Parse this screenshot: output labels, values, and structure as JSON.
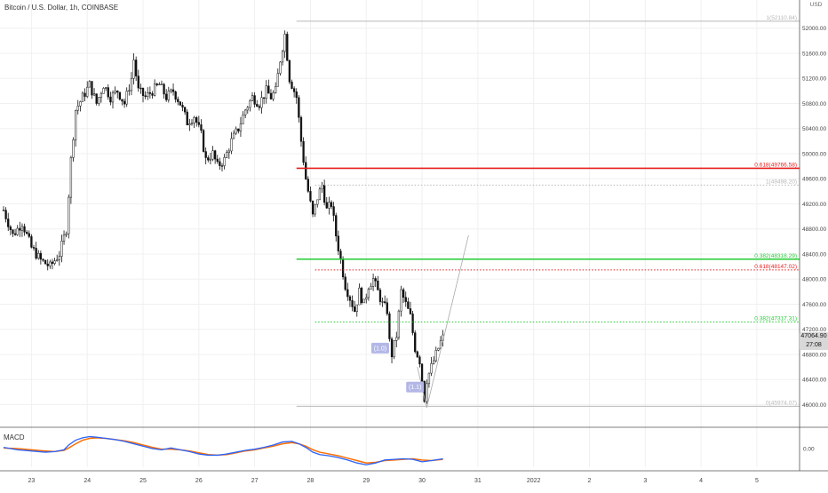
{
  "chart_title": "Bitcoin / U.S. Dollar, 1h, COINBASE",
  "currency": "USD",
  "macd_label": "MACD",
  "current_price": "47064.90",
  "countdown": "27:08",
  "colors": {
    "candle": "#111111",
    "fib_red": "#e61e1e",
    "fib_green": "#22cc33",
    "gray_level": "#b8b8b8",
    "macd_line": "#2962ff",
    "signal_line": "#ff6d00",
    "grid": "#f0f0f0",
    "axis_text": "#444444",
    "wave_label_bg": "#b3b7e6"
  },
  "chart_data": {
    "type": "candlestick",
    "title": "Bitcoin / U.S. Dollar, 1h, COINBASE",
    "y_axis": {
      "ticks": [
        "52400.00",
        "52000.00",
        "51600.00",
        "51200.00",
        "50800.00",
        "50400.00",
        "50000.00",
        "49600.00",
        "49200.00",
        "48800.00",
        "48400.00",
        "48000.00",
        "47600.00",
        "47200.00",
        "46800.00",
        "46400.00",
        "46000.00"
      ],
      "ylim": [
        45900,
        52500
      ]
    },
    "x_axis": {
      "ticks": [
        {
          "label": "23",
          "hour": 12
        },
        {
          "label": "24",
          "hour": 36
        },
        {
          "label": "25",
          "hour": 60
        },
        {
          "label": "26",
          "hour": 84
        },
        {
          "label": "27",
          "hour": 108
        },
        {
          "label": "28",
          "hour": 132
        },
        {
          "label": "29",
          "hour": 156
        },
        {
          "label": "30",
          "hour": 180
        },
        {
          "label": "31",
          "hour": 204
        },
        {
          "label": "2022",
          "hour": 228
        },
        {
          "label": "2",
          "hour": 252
        },
        {
          "label": "3",
          "hour": 276
        },
        {
          "label": "4",
          "hour": 300
        },
        {
          "label": "5",
          "hour": 324
        }
      ]
    },
    "price_path": [
      [
        0,
        49100
      ],
      [
        4,
        48700
      ],
      [
        8,
        48900
      ],
      [
        12,
        48500
      ],
      [
        16,
        48300
      ],
      [
        20,
        48200
      ],
      [
        24,
        48400
      ],
      [
        27,
        48800
      ],
      [
        29,
        49900
      ],
      [
        31,
        50700
      ],
      [
        34,
        50900
      ],
      [
        37,
        51100
      ],
      [
        40,
        50800
      ],
      [
        43,
        51100
      ],
      [
        46,
        50900
      ],
      [
        49,
        51000
      ],
      [
        52,
        50800
      ],
      [
        55,
        51200
      ],
      [
        56,
        51500
      ],
      [
        58,
        51000
      ],
      [
        61,
        50900
      ],
      [
        64,
        51000
      ],
      [
        67,
        51100
      ],
      [
        70,
        50900
      ],
      [
        73,
        51000
      ],
      [
        76,
        50800
      ],
      [
        79,
        50500
      ],
      [
        82,
        50600
      ],
      [
        85,
        50300
      ],
      [
        87,
        49900
      ],
      [
        90,
        50000
      ],
      [
        92,
        49800
      ],
      [
        95,
        49900
      ],
      [
        98,
        50200
      ],
      [
        101,
        50400
      ],
      [
        104,
        50700
      ],
      [
        107,
        50900
      ],
      [
        110,
        50800
      ],
      [
        113,
        51000
      ],
      [
        115,
        50900
      ],
      [
        117,
        51000
      ],
      [
        119,
        51500
      ],
      [
        121,
        51900
      ],
      [
        123,
        51200
      ],
      [
        126,
        50900
      ],
      [
        128,
        50200
      ],
      [
        130,
        49600
      ],
      [
        131,
        49400
      ],
      [
        133,
        49000
      ],
      [
        135,
        49300
      ],
      [
        137,
        49500
      ],
      [
        139,
        49100
      ],
      [
        141,
        49200
      ],
      [
        143,
        48700
      ],
      [
        145,
        48300
      ],
      [
        147,
        47900
      ],
      [
        149,
        47700
      ],
      [
        151,
        47500
      ],
      [
        153,
        47800
      ],
      [
        155,
        47600
      ],
      [
        157,
        47900
      ],
      [
        159,
        48000
      ],
      [
        161,
        47800
      ],
      [
        163,
        47600
      ],
      [
        165,
        47500
      ],
      [
        166,
        47000
      ],
      [
        167,
        46800
      ],
      [
        169,
        47100
      ],
      [
        171,
        47800
      ],
      [
        173,
        47600
      ],
      [
        175,
        47400
      ],
      [
        177,
        46900
      ],
      [
        179,
        46700
      ],
      [
        180,
        46400
      ],
      [
        181,
        46100
      ],
      [
        182,
        46400
      ],
      [
        184,
        46600
      ],
      [
        186,
        46800
      ],
      [
        188,
        47000
      ],
      [
        189,
        47065
      ]
    ],
    "ohlc_summary": {
      "open": 49100,
      "close": 47065,
      "high": 52110.84,
      "low": 45974.07
    },
    "fibonacci_levels": [
      {
        "label": "1(52110.84)",
        "price": 52110.84,
        "color": "gray",
        "style": "solid",
        "start_hour": 126
      },
      {
        "label": "0.618(49766.58)",
        "price": 49766.58,
        "color": "red",
        "style": "solid",
        "start_hour": 126
      },
      {
        "label": "1(49498.20)",
        "price": 49498.2,
        "color": "gray",
        "style": "dotted",
        "start_hour": 134
      },
      {
        "label": "0.382(48318.29)",
        "price": 48318.29,
        "color": "green",
        "style": "solid",
        "start_hour": 126
      },
      {
        "label": "0.618(48147.02)",
        "price": 48147.02,
        "color": "red",
        "style": "dotted",
        "start_hour": 134
      },
      {
        "label": "0.382(47317.31)",
        "price": 47317.31,
        "color": "green",
        "style": "dotted",
        "start_hour": 134
      },
      {
        "label": "0(45974.07)",
        "price": 45974.07,
        "color": "gray",
        "style": "solid",
        "start_hour": 126
      }
    ],
    "projection_path": [
      [
        178,
        46600
      ],
      [
        182,
        45950
      ],
      [
        200,
        48700
      ]
    ],
    "wave_labels": [
      {
        "label": "(1.0)",
        "hour": 162,
        "price": 46900
      },
      {
        "label": "(1.1)",
        "hour": 177,
        "price": 46280
      }
    ],
    "macd": {
      "zero_tick": "0.00",
      "ylim": [
        -1.5,
        1.1
      ],
      "macd_line": [
        [
          0,
          0.1
        ],
        [
          6,
          -0.1
        ],
        [
          12,
          -0.2
        ],
        [
          18,
          -0.3
        ],
        [
          22,
          -0.25
        ],
        [
          26,
          -0.1
        ],
        [
          28,
          0.3
        ],
        [
          31,
          0.7
        ],
        [
          34,
          0.9
        ],
        [
          37,
          1.0
        ],
        [
          40,
          0.95
        ],
        [
          44,
          0.85
        ],
        [
          48,
          0.75
        ],
        [
          52,
          0.6
        ],
        [
          56,
          0.4
        ],
        [
          60,
          0.2
        ],
        [
          64,
          0.0
        ],
        [
          68,
          -0.1
        ],
        [
          72,
          0.05
        ],
        [
          76,
          -0.1
        ],
        [
          80,
          -0.25
        ],
        [
          84,
          -0.45
        ],
        [
          88,
          -0.55
        ],
        [
          92,
          -0.55
        ],
        [
          96,
          -0.45
        ],
        [
          100,
          -0.3
        ],
        [
          104,
          -0.15
        ],
        [
          108,
          -0.05
        ],
        [
          112,
          0.1
        ],
        [
          116,
          0.3
        ],
        [
          120,
          0.55
        ],
        [
          124,
          0.6
        ],
        [
          127,
          0.4
        ],
        [
          130,
          0.1
        ],
        [
          133,
          -0.3
        ],
        [
          136,
          -0.5
        ],
        [
          140,
          -0.6
        ],
        [
          144,
          -0.75
        ],
        [
          148,
          -0.95
        ],
        [
          152,
          -1.2
        ],
        [
          156,
          -1.35
        ],
        [
          160,
          -1.2
        ],
        [
          164,
          -0.95
        ],
        [
          168,
          -0.9
        ],
        [
          172,
          -0.85
        ],
        [
          176,
          -0.9
        ],
        [
          180,
          -1.1
        ],
        [
          184,
          -1.0
        ],
        [
          189,
          -0.85
        ]
      ],
      "signal_line": [
        [
          0,
          0.05
        ],
        [
          6,
          0.0
        ],
        [
          12,
          -0.1
        ],
        [
          18,
          -0.2
        ],
        [
          22,
          -0.25
        ],
        [
          26,
          -0.15
        ],
        [
          28,
          0.05
        ],
        [
          31,
          0.4
        ],
        [
          34,
          0.7
        ],
        [
          37,
          0.85
        ],
        [
          40,
          0.9
        ],
        [
          44,
          0.85
        ],
        [
          48,
          0.75
        ],
        [
          52,
          0.65
        ],
        [
          56,
          0.5
        ],
        [
          60,
          0.3
        ],
        [
          64,
          0.1
        ],
        [
          68,
          -0.05
        ],
        [
          72,
          -0.05
        ],
        [
          76,
          -0.1
        ],
        [
          80,
          -0.2
        ],
        [
          84,
          -0.35
        ],
        [
          88,
          -0.5
        ],
        [
          92,
          -0.55
        ],
        [
          96,
          -0.5
        ],
        [
          100,
          -0.35
        ],
        [
          104,
          -0.2
        ],
        [
          108,
          -0.1
        ],
        [
          112,
          0.05
        ],
        [
          116,
          0.2
        ],
        [
          120,
          0.4
        ],
        [
          124,
          0.5
        ],
        [
          127,
          0.4
        ],
        [
          130,
          0.2
        ],
        [
          133,
          -0.1
        ],
        [
          136,
          -0.3
        ],
        [
          140,
          -0.45
        ],
        [
          144,
          -0.6
        ],
        [
          148,
          -0.8
        ],
        [
          152,
          -1.0
        ],
        [
          156,
          -1.2
        ],
        [
          160,
          -1.15
        ],
        [
          164,
          -1.0
        ],
        [
          168,
          -0.95
        ],
        [
          172,
          -0.9
        ],
        [
          176,
          -0.85
        ],
        [
          180,
          -0.95
        ],
        [
          184,
          -1.0
        ],
        [
          189,
          -0.9
        ]
      ]
    }
  }
}
